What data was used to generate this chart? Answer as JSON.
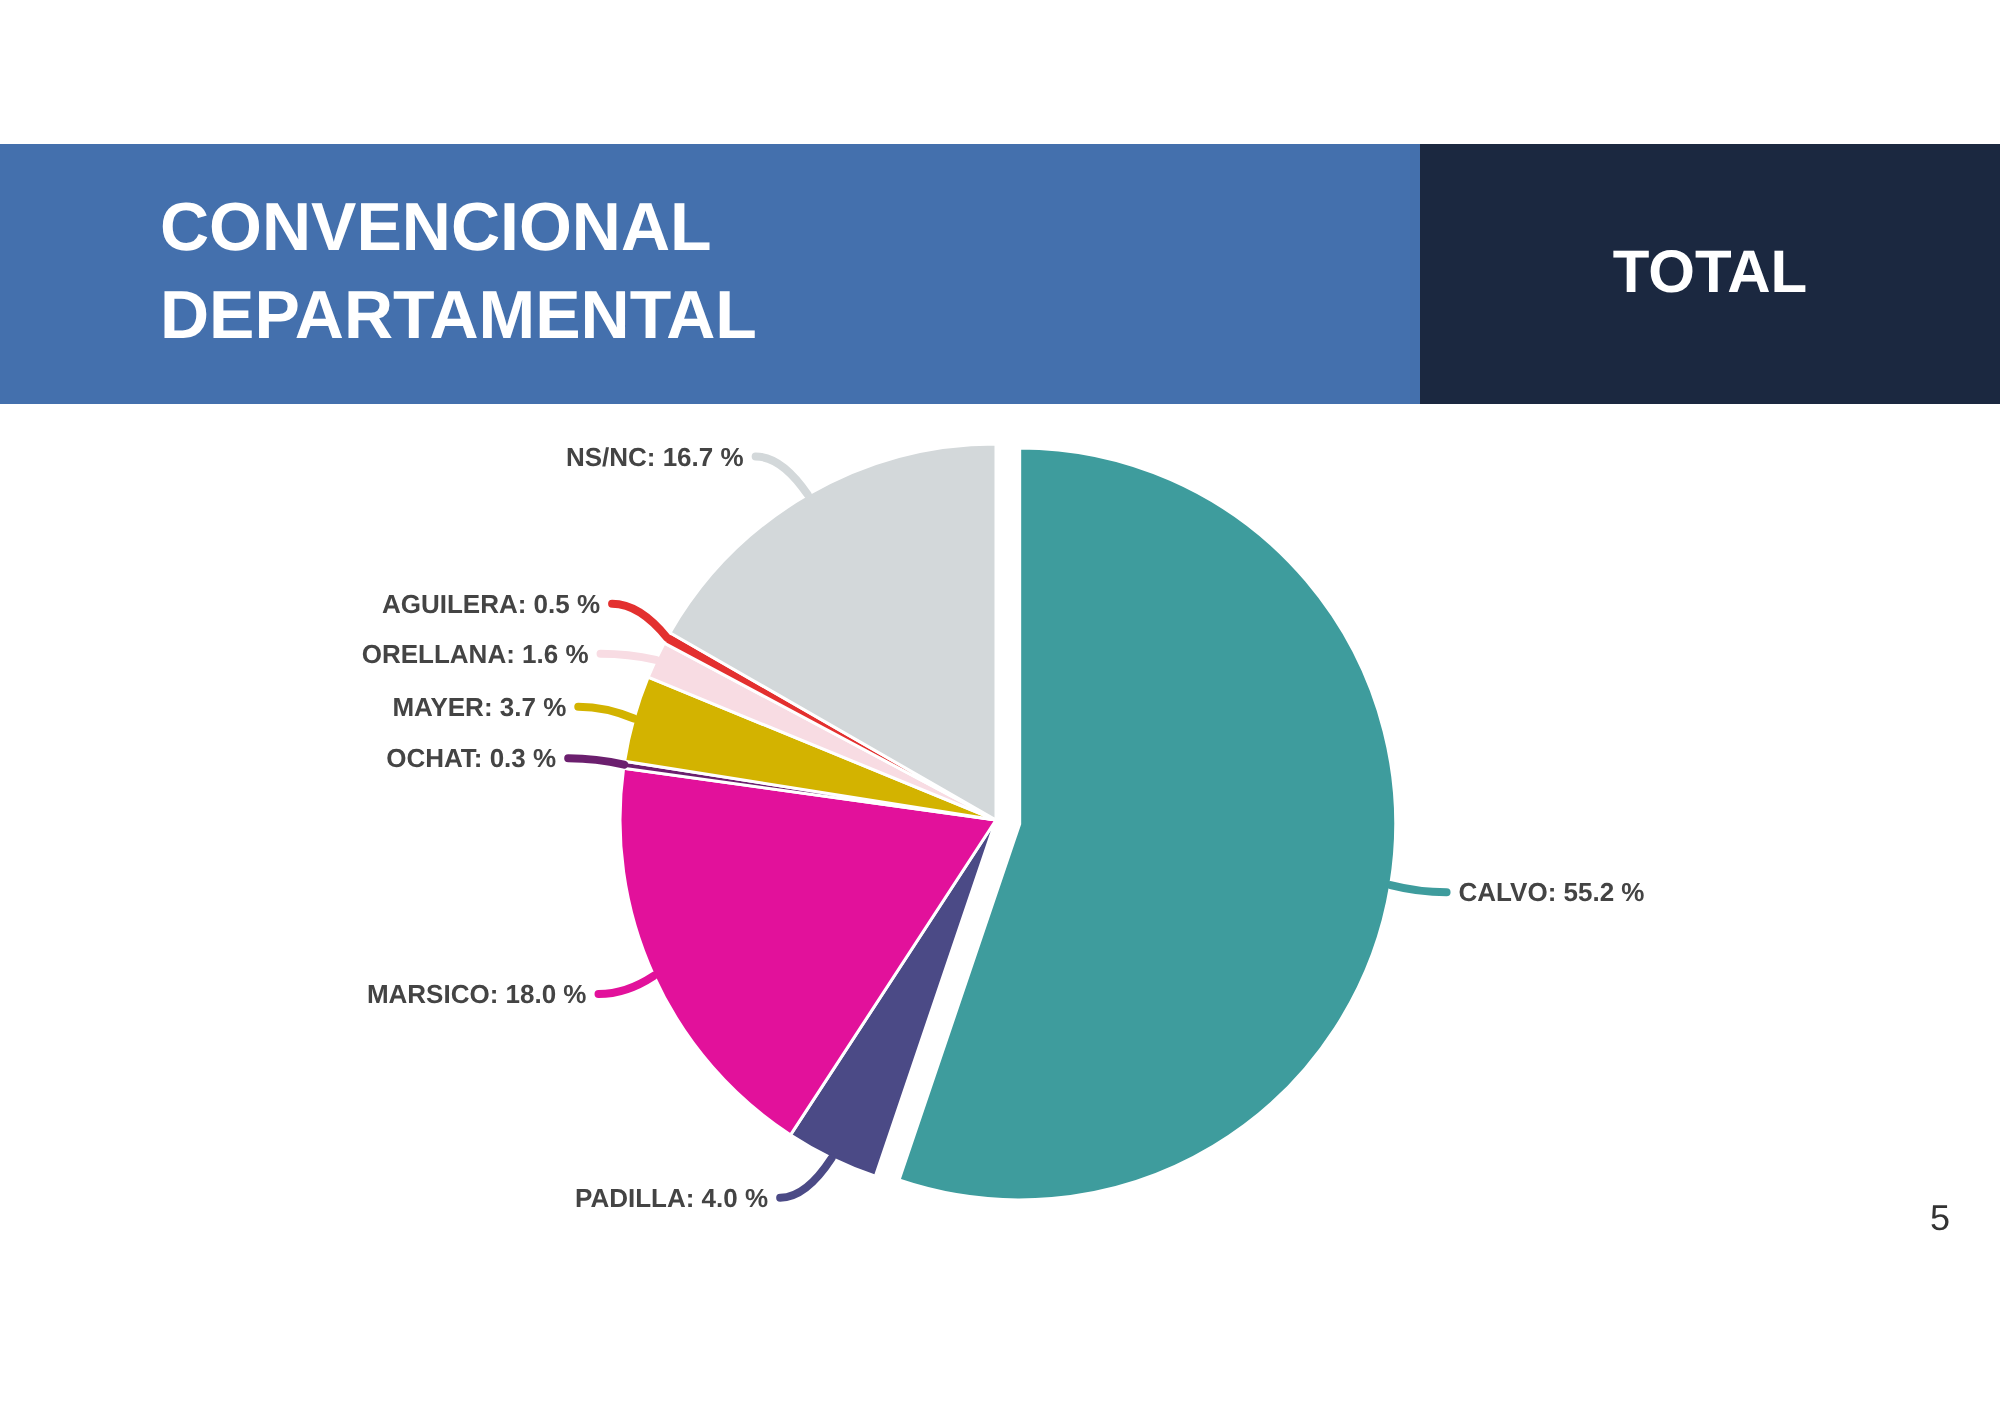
{
  "chart_data": {
    "type": "pie",
    "title": "CONVENCIONAL DEPARTAMENTAL",
    "subtitle": "TOTAL",
    "categories": [
      "CALVO",
      "PADILLA",
      "MARSICO",
      "OCHAT",
      "MAYER",
      "ORELLANA",
      "AGUILERA",
      "NS/NC"
    ],
    "values": [
      55.2,
      4.0,
      18.0,
      0.3,
      3.7,
      1.6,
      0.5,
      16.7
    ],
    "value_labels": [
      "55.2 %",
      "4.0 %",
      "18.0 %",
      "0.3 %",
      "3.7 %",
      "1.6 %",
      "0.5 %",
      "16.7 %"
    ],
    "colors": [
      "#3e9c9d",
      "#4b4a86",
      "#e2119b",
      "#6b1f6e",
      "#d3b300",
      "#f8dce3",
      "#e3302f",
      "#d3d8da"
    ],
    "annotations": [
      "5"
    ]
  }
}
